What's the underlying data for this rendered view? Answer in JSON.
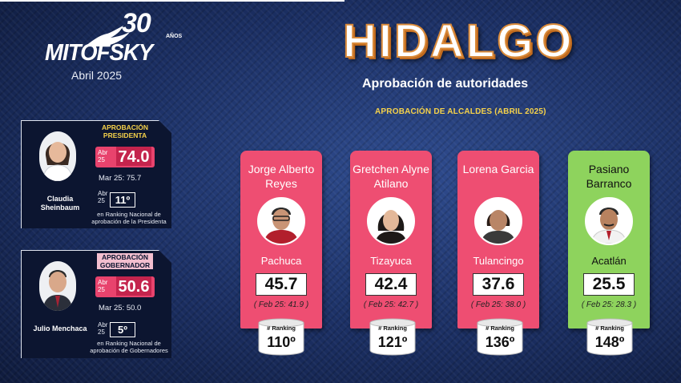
{
  "header": {
    "logo_30": "30",
    "logo_anos": "AÑOS",
    "logo_name": "MITOFSKY",
    "date": "Abril 2025",
    "title": "HIDALGO",
    "subtitle": "Aprobación de autoridades",
    "section": "APROBACIÓN DE ALCALDES (ABRIL 2025)"
  },
  "president": {
    "heading": "APROBACIÓN PRESIDENTA",
    "period": "Abr 25",
    "score": "74.0",
    "previous": "Mar 25:  75.7",
    "rank_period": "Abr 25",
    "rank": "11º",
    "note": "en Ranking Nacional de aprobación de la Presidenta",
    "name": "Claudia Sheinbaum"
  },
  "governor": {
    "heading": "APROBACIÓN GOBERNADOR",
    "period": "Abr 25",
    "score": "50.6",
    "previous": "Mar 25:  50.0",
    "rank_period": "Abr 25",
    "rank": "5º",
    "note": "en Ranking Nacional de aprobación de Gobernadores",
    "name": "Julio Menchaca"
  },
  "mayors": [
    {
      "name": "Jorge Alberto Reyes",
      "city": "Pachuca",
      "score": "45.7",
      "previous": "( Feb 25: 41.9 )",
      "rank_label": "# Ranking",
      "rank": "110º",
      "color": "#ee4e72"
    },
    {
      "name": "Gretchen Alyne Atilano",
      "city": "Tizayuca",
      "score": "42.4",
      "previous": "( Feb 25: 42.7 )",
      "rank_label": "# Ranking",
      "rank": "121º",
      "color": "#ee4e72"
    },
    {
      "name": "Lorena Garcia",
      "city": "Tulancingo",
      "score": "37.6",
      "previous": "( Feb 25: 38.0 )",
      "rank_label": "# Ranking",
      "rank": "136º",
      "color": "#ee4e72"
    },
    {
      "name": "Pasiano Barranco",
      "city": "Acatlán",
      "score": "25.5",
      "previous": "( Feb 25: 28.3 )",
      "rank_label": "# Ranking",
      "rank": "148º",
      "color": "#8ed35d"
    }
  ]
}
